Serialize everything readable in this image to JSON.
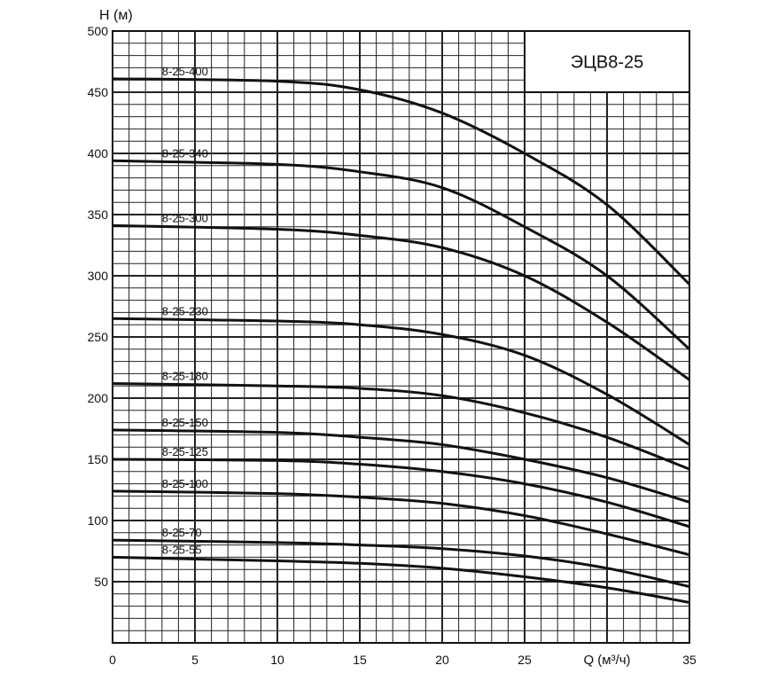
{
  "chart_data": {
    "type": "line",
    "title": "ЭЦВ8-25",
    "xlabel": "Q (м³/ч)",
    "ylabel": "H (м)",
    "xlim": [
      0,
      35
    ],
    "ylim": [
      0,
      500
    ],
    "x_ticks": [
      "0",
      "5",
      "10",
      "15",
      "20",
      "25",
      "35"
    ],
    "x_tick_values": [
      0,
      5,
      10,
      15,
      20,
      25,
      35
    ],
    "y_ticks": [
      "50",
      "100",
      "150",
      "200",
      "250",
      "300",
      "350",
      "400",
      "450",
      "500"
    ],
    "y_tick_values": [
      50,
      100,
      150,
      200,
      250,
      300,
      350,
      400,
      450,
      500
    ],
    "grid": true,
    "grid_minor_x": 1,
    "grid_minor_y": 10,
    "line_color": "#111111",
    "x": [
      0,
      10,
      15,
      20,
      25,
      30,
      35
    ],
    "series": [
      {
        "name": "8-25-400",
        "values": [
          461,
          459,
          452,
          433,
          400,
          358,
          293
        ]
      },
      {
        "name": "8-25-340",
        "values": [
          394,
          391,
          385,
          372,
          340,
          300,
          240
        ]
      },
      {
        "name": "8-25-300",
        "values": [
          341,
          338,
          333,
          323,
          300,
          262,
          215
        ]
      },
      {
        "name": "8-25-230",
        "values": [
          265,
          263,
          260,
          252,
          235,
          203,
          162
        ]
      },
      {
        "name": "8-25-180",
        "values": [
          212,
          210,
          208,
          202,
          188,
          168,
          142
        ]
      },
      {
        "name": "8-25-150",
        "values": [
          174,
          172,
          168,
          162,
          150,
          135,
          115
        ]
      },
      {
        "name": "8-25-125",
        "values": [
          150,
          149,
          146,
          140,
          130,
          115,
          95
        ]
      },
      {
        "name": "8-25-100",
        "values": [
          124,
          122,
          119,
          114,
          104,
          89,
          72
        ]
      },
      {
        "name": "8-25-70",
        "values": [
          84,
          82,
          80,
          77,
          71,
          61,
          46
        ]
      },
      {
        "name": "8-25-55",
        "values": [
          70,
          67,
          65,
          61,
          54,
          45,
          33
        ]
      }
    ]
  }
}
